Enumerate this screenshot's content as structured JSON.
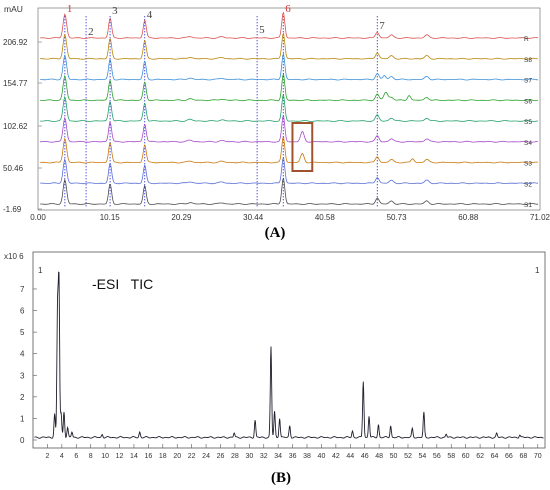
{
  "chart_data": [
    {
      "panel_label": "(A)",
      "type": "line",
      "y_unit": "mAU",
      "y_ticks": [
        "206.92",
        "154.77",
        "102.62",
        "50.46",
        "-1.69"
      ],
      "x_ticks": [
        "0.00",
        "10.15",
        "20.29",
        "30.44",
        "40.58",
        "50.73",
        "60.88",
        "71.02"
      ],
      "xlim": [
        0,
        71.02
      ],
      "peak_labels": [
        {
          "label": "1",
          "x": 3.8
        },
        {
          "label": "2",
          "x": 6.8
        },
        {
          "label": "3",
          "x": 10.2
        },
        {
          "label": "4",
          "x": 15.1
        },
        {
          "label": "5",
          "x": 31.0
        },
        {
          "label": "6",
          "x": 34.7
        },
        {
          "label": "7",
          "x": 48.0
        }
      ],
      "series": [
        {
          "name": "R",
          "color": "#d9534f"
        },
        {
          "name": "S8",
          "color": "#b8860b"
        },
        {
          "name": "S7",
          "color": "#3a8fd9"
        },
        {
          "name": "S6",
          "color": "#2ca02c"
        },
        {
          "name": "S5",
          "color": "#22a06b"
        },
        {
          "name": "S4",
          "color": "#a64ac9"
        },
        {
          "name": "S3",
          "color": "#c8780a"
        },
        {
          "name": "S2",
          "color": "#5a6fd6"
        },
        {
          "name": "S1",
          "color": "#4b4b4b"
        }
      ],
      "highlight_box": {
        "x_range": [
          36.0,
          38.8
        ],
        "series_range": [
          "S4",
          "S3"
        ],
        "color": "#a0522d"
      }
    },
    {
      "panel_label": "(B)",
      "type": "line",
      "title": "-ESI   TIC",
      "y_unit": "x10 6",
      "corner_labels": [
        "1",
        "1"
      ],
      "y_ticks": [
        "0",
        "1",
        "2",
        "3",
        "4",
        "5",
        "6",
        "7"
      ],
      "ylim": [
        0,
        7.6
      ],
      "x_ticks": [
        "2",
        "4",
        "6",
        "8",
        "10",
        "12",
        "14",
        "16",
        "18",
        "20",
        "22",
        "24",
        "26",
        "28",
        "30",
        "32",
        "34",
        "36",
        "38",
        "40",
        "42",
        "44",
        "46",
        "48",
        "50",
        "52",
        "54",
        "56",
        "58",
        "60",
        "62",
        "64",
        "66",
        "68",
        "70"
      ],
      "xlim": [
        0,
        71
      ],
      "series": [
        {
          "color": "#1f1f2e",
          "baseline": 0.12,
          "peaks": [
            [
              3.0,
              1.1
            ],
            [
              3.4,
              5.8
            ],
            [
              3.6,
              7.1
            ],
            [
              3.9,
              1.1
            ],
            [
              4.3,
              1.2
            ],
            [
              4.8,
              0.45
            ],
            [
              5.4,
              0.25
            ],
            [
              9.6,
              0.15
            ],
            [
              14.8,
              0.25
            ],
            [
              27.9,
              0.2
            ],
            [
              30.8,
              0.8
            ],
            [
              33.0,
              4.2
            ],
            [
              33.5,
              1.2
            ],
            [
              34.2,
              0.9
            ],
            [
              35.6,
              0.55
            ],
            [
              44.3,
              0.3
            ],
            [
              45.8,
              2.6
            ],
            [
              46.6,
              1.0
            ],
            [
              47.9,
              0.6
            ],
            [
              49.6,
              0.55
            ],
            [
              52.6,
              0.4
            ],
            [
              54.2,
              1.15
            ],
            [
              57.3,
              0.15
            ],
            [
              64.3,
              0.18
            ],
            [
              67.5,
              0.12
            ]
          ]
        }
      ]
    }
  ]
}
